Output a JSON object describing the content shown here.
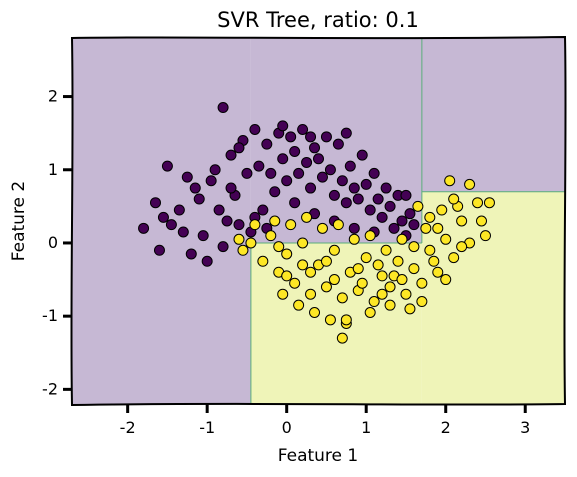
{
  "chart_data": {
    "type": "scatter",
    "title": "SVR Tree, ratio: 0.1",
    "xlabel": "Feature 1",
    "ylabel": "Feature 2",
    "xlim": [
      -2.7,
      3.5
    ],
    "ylim": [
      -2.2,
      2.8
    ],
    "xticks": [
      -2,
      -1,
      0,
      1,
      2,
      3
    ],
    "yticks": [
      -2,
      -1,
      0,
      1,
      2
    ],
    "xtick_labels": [
      "-2",
      "-1",
      "0",
      "1",
      "2",
      "3"
    ],
    "ytick_labels": [
      "-2",
      "-1",
      "0",
      "1",
      "2"
    ],
    "grid": false,
    "legend": "none",
    "colors": {
      "class0_point": "#440154",
      "class1_point": "#fde725",
      "class0_region": "#c6b8d4",
      "class1_region": "#eff4b8",
      "boundary": "#5aae7a",
      "point_edge": "#000000"
    },
    "decision_regions": [
      {
        "class": 0,
        "x": [
          -2.7,
          -0.45
        ],
        "y": [
          -2.2,
          2.8
        ]
      },
      {
        "class": 0,
        "x": [
          -0.45,
          1.7
        ],
        "y": [
          0.0,
          2.8
        ]
      },
      {
        "class": 0,
        "x": [
          1.7,
          3.5
        ],
        "y": [
          0.7,
          2.8
        ]
      },
      {
        "class": 1,
        "x": [
          -0.45,
          1.7
        ],
        "y": [
          -2.2,
          0.0
        ]
      },
      {
        "class": 1,
        "x": [
          1.7,
          3.5
        ],
        "y": [
          -2.2,
          0.7
        ]
      }
    ],
    "series": [
      {
        "class": 0,
        "points": [
          [
            -0.8,
            1.85
          ],
          [
            -1.5,
            1.05
          ],
          [
            -1.8,
            0.2
          ],
          [
            -1.6,
            -0.1
          ],
          [
            -1.35,
            0.45
          ],
          [
            -1.1,
            0.6
          ],
          [
            -0.95,
            0.85
          ],
          [
            -0.7,
            1.2
          ],
          [
            -0.55,
            1.4
          ],
          [
            -0.4,
            1.55
          ],
          [
            -0.25,
            1.35
          ],
          [
            -0.1,
            1.5
          ],
          [
            0.05,
            1.45
          ],
          [
            0.2,
            1.55
          ],
          [
            0.35,
            1.3
          ],
          [
            0.5,
            1.45
          ],
          [
            0.65,
            1.35
          ],
          [
            0.8,
            1.05
          ],
          [
            0.95,
            1.2
          ],
          [
            1.1,
            0.95
          ],
          [
            1.25,
            0.75
          ],
          [
            1.4,
            0.65
          ],
          [
            1.55,
            0.4
          ],
          [
            1.5,
            0.65
          ],
          [
            -1.2,
            -0.15
          ],
          [
            -1.0,
            -0.25
          ],
          [
            -0.8,
            -0.05
          ],
          [
            -0.6,
            0.25
          ],
          [
            -0.45,
            0.15
          ],
          [
            -0.3,
            0.45
          ],
          [
            -0.15,
            0.7
          ],
          [
            0.0,
            0.85
          ],
          [
            0.15,
            0.95
          ],
          [
            0.3,
            0.75
          ],
          [
            0.45,
            0.9
          ],
          [
            0.6,
            0.65
          ],
          [
            0.75,
            0.55
          ],
          [
            0.9,
            0.6
          ],
          [
            1.05,
            0.45
          ],
          [
            1.2,
            0.35
          ],
          [
            1.35,
            0.2
          ],
          [
            -1.45,
            0.25
          ],
          [
            -1.25,
            0.9
          ],
          [
            -1.05,
            0.1
          ],
          [
            -0.85,
            0.45
          ],
          [
            -0.65,
            0.65
          ],
          [
            -0.5,
            0.95
          ],
          [
            -0.35,
            1.05
          ],
          [
            -0.2,
            0.95
          ],
          [
            -0.05,
            1.15
          ],
          [
            0.1,
            1.25
          ],
          [
            0.25,
            1.1
          ],
          [
            0.4,
            1.15
          ],
          [
            0.55,
            1.0
          ],
          [
            0.7,
            0.85
          ],
          [
            0.85,
            0.75
          ],
          [
            1.0,
            0.8
          ],
          [
            1.15,
            0.6
          ],
          [
            1.3,
            0.5
          ],
          [
            1.45,
            0.3
          ],
          [
            -1.65,
            0.55
          ],
          [
            -1.3,
            0.15
          ],
          [
            -0.9,
            1.0
          ],
          [
            -0.75,
            0.3
          ],
          [
            -0.6,
            1.3
          ],
          [
            -0.4,
            0.35
          ],
          [
            -0.25,
            0.2
          ],
          [
            0.1,
            0.55
          ],
          [
            0.35,
            0.4
          ],
          [
            0.6,
            0.3
          ],
          [
            0.85,
            0.2
          ],
          [
            1.1,
            0.15
          ],
          [
            1.5,
            0.1
          ],
          [
            1.6,
            0.25
          ],
          [
            -0.05,
            1.6
          ],
          [
            0.3,
            1.45
          ],
          [
            0.75,
            1.5
          ],
          [
            -1.55,
            0.35
          ],
          [
            -1.15,
            0.75
          ],
          [
            -0.7,
            0.75
          ]
        ]
      },
      {
        "class": 1,
        "points": [
          [
            -0.55,
            -0.1
          ],
          [
            -0.45,
            0.0
          ],
          [
            -0.3,
            -0.25
          ],
          [
            -0.2,
            0.1
          ],
          [
            -0.1,
            -0.4
          ],
          [
            0.0,
            -0.15
          ],
          [
            0.1,
            -0.55
          ],
          [
            0.2,
            0.0
          ],
          [
            0.3,
            -0.7
          ],
          [
            0.4,
            -0.3
          ],
          [
            0.5,
            -0.6
          ],
          [
            0.6,
            -0.1
          ],
          [
            0.7,
            -0.75
          ],
          [
            0.8,
            -0.4
          ],
          [
            0.9,
            -0.65
          ],
          [
            1.0,
            -0.2
          ],
          [
            1.1,
            -0.8
          ],
          [
            1.2,
            -0.45
          ],
          [
            1.3,
            -0.6
          ],
          [
            1.4,
            -0.25
          ],
          [
            1.5,
            -0.7
          ],
          [
            1.6,
            -0.35
          ],
          [
            1.7,
            -0.55
          ],
          [
            1.8,
            -0.1
          ],
          [
            1.9,
            -0.4
          ],
          [
            2.0,
            0.05
          ],
          [
            2.1,
            -0.2
          ],
          [
            2.2,
            0.3
          ],
          [
            2.3,
            0.0
          ],
          [
            2.4,
            0.55
          ],
          [
            2.5,
            0.1
          ],
          [
            2.55,
            0.55
          ],
          [
            2.05,
            0.85
          ],
          [
            2.3,
            0.8
          ],
          [
            2.15,
            0.5
          ],
          [
            1.95,
            0.45
          ],
          [
            1.8,
            0.35
          ],
          [
            1.65,
            0.5
          ],
          [
            1.75,
            0.2
          ],
          [
            1.85,
            -0.25
          ],
          [
            2.0,
            -0.5
          ],
          [
            1.55,
            -0.9
          ],
          [
            1.3,
            -0.85
          ],
          [
            1.05,
            -0.95
          ],
          [
            0.75,
            -1.1
          ],
          [
            0.55,
            -1.05
          ],
          [
            0.35,
            -0.95
          ],
          [
            0.15,
            -0.85
          ],
          [
            -0.05,
            -0.7
          ],
          [
            -0.1,
            -0.05
          ],
          [
            0.05,
            0.25
          ],
          [
            0.25,
            0.35
          ],
          [
            0.45,
            0.2
          ],
          [
            0.65,
            0.25
          ],
          [
            0.85,
            0.05
          ],
          [
            1.05,
            0.1
          ],
          [
            1.25,
            -0.1
          ],
          [
            1.45,
            0.05
          ],
          [
            0.7,
            -1.3
          ],
          [
            0.75,
            -1.05
          ],
          [
            -0.15,
            0.3
          ],
          [
            0.3,
            -0.4
          ],
          [
            0.5,
            -0.25
          ],
          [
            0.9,
            -0.35
          ],
          [
            1.15,
            -0.3
          ],
          [
            1.35,
            -0.45
          ],
          [
            1.6,
            -0.05
          ],
          [
            1.9,
            0.2
          ],
          [
            2.2,
            -0.05
          ],
          [
            2.45,
            0.3
          ],
          [
            0.0,
            -0.45
          ],
          [
            0.2,
            -0.3
          ],
          [
            0.6,
            -0.5
          ],
          [
            0.95,
            -0.55
          ],
          [
            1.2,
            -0.7
          ],
          [
            1.45,
            -0.5
          ],
          [
            1.7,
            -0.8
          ],
          [
            2.1,
            0.6
          ],
          [
            -0.4,
            0.25
          ],
          [
            -0.6,
            0.05
          ]
        ]
      }
    ]
  }
}
